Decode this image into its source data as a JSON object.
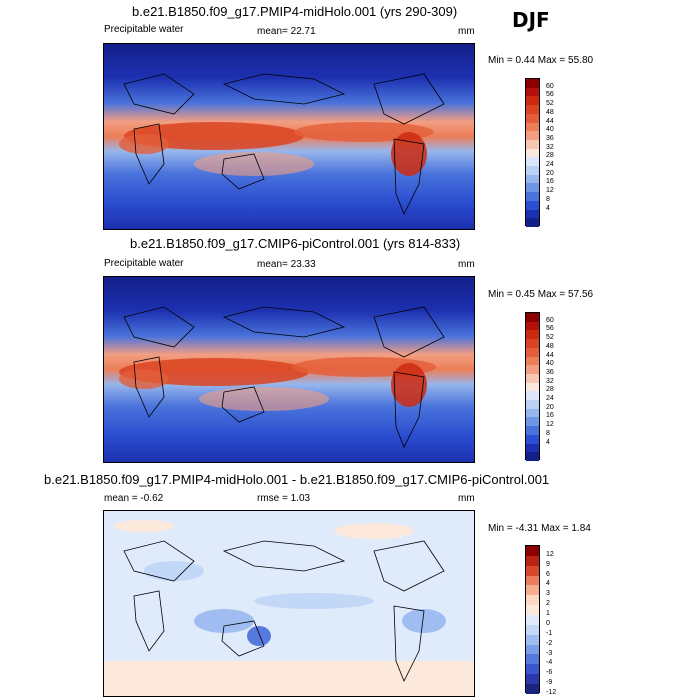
{
  "season": "DJF",
  "panels": [
    {
      "title": "b.e21.B1850.f09_g17.PMIP4-midHolo.001 (yrs 290-309)",
      "left_label": "Precipitable water",
      "mid_label": "mean=  22.71",
      "units": "mm",
      "minmax": "Min =   0.44 Max =  55.80",
      "colorbar_labels": [
        "60",
        "56",
        "52",
        "48",
        "44",
        "40",
        "36",
        "32",
        "28",
        "24",
        "20",
        "16",
        "12",
        "8",
        "4"
      ]
    },
    {
      "title": "b.e21.B1850.f09_g17.CMIP6-piControl.001 (yrs 814-833)",
      "left_label": "Precipitable water",
      "mid_label": "mean=  23.33",
      "units": "mm",
      "minmax": "Min =   0.45 Max =  57.56",
      "colorbar_labels": [
        "60",
        "56",
        "52",
        "48",
        "44",
        "40",
        "36",
        "32",
        "28",
        "24",
        "20",
        "16",
        "12",
        "8",
        "4"
      ]
    },
    {
      "title": "b.e21.B1850.f09_g17.PMIP4-midHolo.001 - b.e21.B1850.f09_g17.CMIP6-piControl.001",
      "left_label": "mean =  -0.62",
      "mid_label": "rmse =   1.03",
      "units": "mm",
      "minmax": "Min =  -4.31 Max =   1.84",
      "colorbar_labels": [
        "12",
        "9",
        "6",
        "4",
        "3",
        "2",
        "1",
        "0",
        "-1",
        "-2",
        "-3",
        "-4",
        "-6",
        "-9",
        "-12"
      ]
    }
  ],
  "colors": {
    "abs_scale": [
      "#8b0000",
      "#b3100b",
      "#cc2a10",
      "#db4421",
      "#e35e3a",
      "#ec7e58",
      "#f29e82",
      "#f8c7b2",
      "#fbe8dc",
      "#dbe7f8",
      "#bad1f3",
      "#97b6ec",
      "#6f96e3",
      "#4a73db",
      "#2c4fd1",
      "#1c30b0",
      "#14208a"
    ],
    "diff_scale": [
      "#8b0000",
      "#b82314",
      "#d5492b",
      "#ea7d5b",
      "#f6ad8f",
      "#fcd7c3",
      "#fde9dc",
      "#dfeafb",
      "#c3d7f7",
      "#9fbdf1",
      "#7a9eea",
      "#5679de",
      "#3a56cf",
      "#2a38ac",
      "#1a237e"
    ]
  }
}
